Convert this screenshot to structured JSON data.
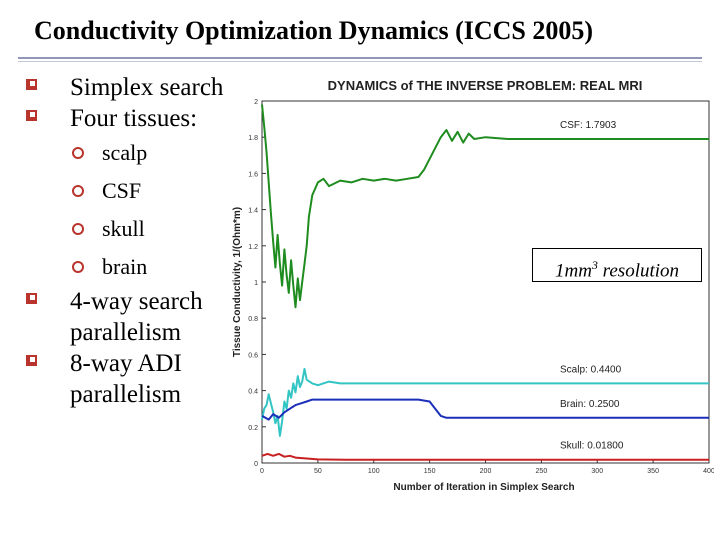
{
  "slide": {
    "title": "Conductivity Optimization Dynamics (ICCS 2005)",
    "bullets": [
      {
        "text": "Simplex search"
      },
      {
        "text": "Four tissues:",
        "sub": [
          "scalp",
          "CSF",
          "skull",
          "brain"
        ]
      },
      {
        "text": "4-way search parallelism"
      },
      {
        "text": "8-way ADI parallelism"
      }
    ],
    "callout": {
      "prefix": "1mm",
      "sup": "3",
      "suffix": " resolution"
    }
  },
  "chart_data": {
    "type": "line",
    "title": "DYNAMICS of THE INVERSE PROBLEM: REAL MRI",
    "xlabel": "Number of Iteration in Simplex Search",
    "ylabel": "Tissue Conductivity, 1/(Ohm*m)",
    "xlim": [
      0,
      400
    ],
    "ylim": [
      0,
      2
    ],
    "xticks": [
      0,
      50,
      100,
      150,
      200,
      250,
      300,
      350,
      400
    ],
    "yticks": [
      0,
      0.2,
      0.4,
      0.6,
      0.8,
      1,
      1.2,
      1.4,
      1.6,
      1.8,
      2
    ],
    "grid": false,
    "series": [
      {
        "name": "CSF",
        "label": "CSF: 1.7903",
        "color": "#1e8c1e",
        "x": [
          0,
          2,
          4,
          6,
          8,
          10,
          12,
          14,
          16,
          18,
          20,
          22,
          24,
          26,
          28,
          30,
          32,
          34,
          36,
          38,
          40,
          42,
          45,
          50,
          55,
          60,
          70,
          80,
          90,
          100,
          110,
          120,
          130,
          140,
          145,
          150,
          155,
          160,
          165,
          170,
          175,
          180,
          185,
          190,
          200,
          220,
          250,
          300,
          350,
          400
        ],
        "y": [
          1.98,
          1.86,
          1.72,
          1.55,
          1.38,
          1.22,
          1.08,
          1.26,
          1.1,
          0.98,
          1.18,
          1.04,
          0.94,
          1.12,
          0.98,
          0.86,
          1.02,
          0.9,
          1.0,
          1.1,
          1.2,
          1.36,
          1.48,
          1.55,
          1.57,
          1.53,
          1.56,
          1.55,
          1.57,
          1.56,
          1.57,
          1.56,
          1.57,
          1.58,
          1.62,
          1.68,
          1.74,
          1.8,
          1.84,
          1.78,
          1.83,
          1.77,
          1.82,
          1.79,
          1.8,
          1.79,
          1.79,
          1.79,
          1.79,
          1.79
        ]
      },
      {
        "name": "Scalp",
        "label": "Scalp: 0.4400",
        "color": "#33c4c4",
        "x": [
          0,
          2,
          4,
          6,
          8,
          10,
          12,
          14,
          16,
          18,
          20,
          22,
          24,
          26,
          28,
          30,
          32,
          34,
          36,
          38,
          40,
          45,
          50,
          60,
          70,
          80,
          90,
          100,
          130,
          160,
          200,
          250,
          300,
          350,
          400
        ],
        "y": [
          0.24,
          0.3,
          0.32,
          0.38,
          0.33,
          0.28,
          0.22,
          0.26,
          0.15,
          0.23,
          0.34,
          0.3,
          0.4,
          0.36,
          0.44,
          0.39,
          0.48,
          0.42,
          0.45,
          0.52,
          0.46,
          0.44,
          0.43,
          0.45,
          0.44,
          0.44,
          0.44,
          0.44,
          0.44,
          0.44,
          0.44,
          0.44,
          0.44,
          0.44,
          0.44
        ]
      },
      {
        "name": "Brain",
        "label": "Brain: 0.2500",
        "color": "#1b2fb8",
        "x": [
          0,
          3,
          6,
          10,
          15,
          20,
          25,
          30,
          35,
          40,
          45,
          50,
          60,
          80,
          100,
          120,
          140,
          150,
          155,
          160,
          165,
          170,
          180,
          200,
          250,
          300,
          350,
          400
        ],
        "y": [
          0.26,
          0.25,
          0.24,
          0.27,
          0.25,
          0.28,
          0.3,
          0.32,
          0.33,
          0.34,
          0.35,
          0.35,
          0.35,
          0.35,
          0.35,
          0.35,
          0.35,
          0.34,
          0.3,
          0.26,
          0.25,
          0.25,
          0.25,
          0.25,
          0.25,
          0.25,
          0.25,
          0.25
        ]
      },
      {
        "name": "Skull",
        "label": "Skull: 0.01800",
        "color": "#c82020",
        "x": [
          0,
          5,
          10,
          15,
          20,
          25,
          30,
          40,
          50,
          75,
          100,
          150,
          200,
          250,
          300,
          350,
          400
        ],
        "y": [
          0.04,
          0.05,
          0.04,
          0.05,
          0.035,
          0.04,
          0.03,
          0.025,
          0.02,
          0.018,
          0.018,
          0.018,
          0.018,
          0.018,
          0.018,
          0.018,
          0.018
        ]
      }
    ]
  }
}
